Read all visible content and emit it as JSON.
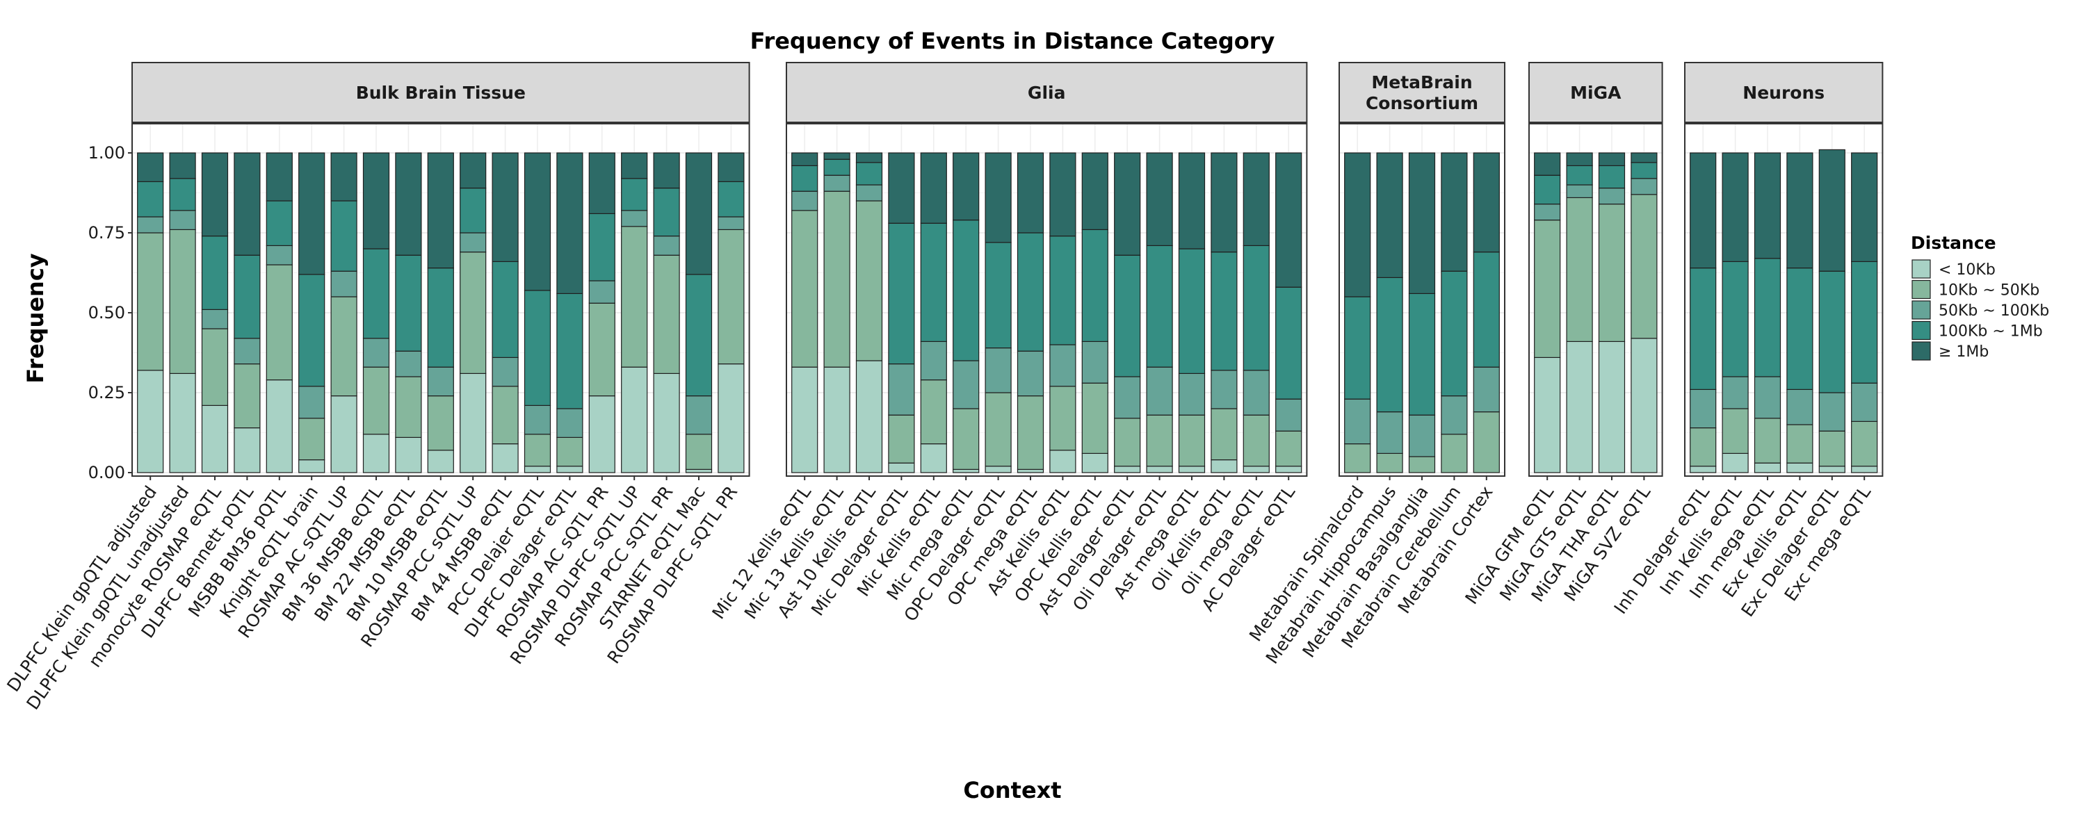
{
  "chart_data": {
    "type": "bar",
    "stacked": true,
    "title": "Frequency of Events in Distance Category",
    "xlabel": "Context",
    "ylabel": "Frequency",
    "ylim": [
      0,
      1
    ],
    "yticks": [
      "0.00",
      "0.25",
      "0.50",
      "0.75",
      "1.00"
    ],
    "grid": true,
    "legend": {
      "title": "Distance",
      "position": "right",
      "items": [
        {
          "label": "< 10Kb",
          "color": "#a8d2c5"
        },
        {
          "label": "10Kb ~ 50Kb",
          "color": "#86b79d"
        },
        {
          "label": "50Kb ~ 100Kb",
          "color": "#66a498"
        },
        {
          "label": "100Kb ~ 1Mb",
          "color": "#358e83"
        },
        {
          "label": "≥ 1Mb",
          "color": "#2d6b67"
        }
      ]
    },
    "panels": [
      {
        "name": "Bulk Brain Tissue",
        "categories": [
          "DLPFC Klein gpQTL adjusted",
          "DLPFC Klein gpQTL unadjusted",
          "monocyte ROSMAP eQTL",
          "DLPFC Bennett pQTL",
          "MSBB BM36 pQTL",
          "Knight eQTL brain",
          "ROSMAP AC sQTL UP",
          "BM 36 MSBB eQTL",
          "BM 22 MSBB eQTL",
          "BM 10 MSBB eQTL",
          "ROSMAP PCC sQTL UP",
          "BM 44 MSBB eQTL",
          "PCC Delajer eQTL",
          "DLPFC Delager eQTL",
          "ROSMAP AC sQTL PR",
          "ROSMAP DLPFC sQTL UP",
          "ROSMAP PCC sQTL PR",
          "STARNET eQTL Mac",
          "ROSMAP DLPFC sQTL PR"
        ],
        "series": [
          {
            "values": [
              0.32,
              0.31,
              0.21,
              0.14,
              0.29,
              0.04,
              0.24,
              0.12,
              0.11,
              0.07,
              0.31,
              0.09,
              0.02,
              0.02,
              0.24,
              0.33,
              0.31,
              0.01,
              0.34
            ]
          },
          {
            "values": [
              0.43,
              0.45,
              0.24,
              0.2,
              0.36,
              0.13,
              0.31,
              0.21,
              0.19,
              0.17,
              0.38,
              0.18,
              0.1,
              0.09,
              0.29,
              0.44,
              0.37,
              0.11,
              0.42
            ]
          },
          {
            "values": [
              0.05,
              0.06,
              0.06,
              0.08,
              0.06,
              0.1,
              0.08,
              0.09,
              0.08,
              0.09,
              0.06,
              0.09,
              0.09,
              0.09,
              0.07,
              0.05,
              0.06,
              0.12,
              0.04
            ]
          },
          {
            "values": [
              0.11,
              0.1,
              0.23,
              0.26,
              0.14,
              0.35,
              0.22,
              0.28,
              0.3,
              0.31,
              0.14,
              0.3,
              0.36,
              0.36,
              0.21,
              0.1,
              0.15,
              0.38,
              0.11
            ]
          },
          {
            "values": [
              0.09,
              0.08,
              0.26,
              0.32,
              0.15,
              0.38,
              0.15,
              0.3,
              0.32,
              0.36,
              0.11,
              0.34,
              0.43,
              0.44,
              0.19,
              0.08,
              0.11,
              0.38,
              0.09
            ]
          }
        ]
      },
      {
        "name": "Glia",
        "categories": [
          "Mic 12 Kellis eQTL",
          "Mic 13 Kellis eQTL",
          "Ast 10 Kellis eQTL",
          "Mic Delager eQTL",
          "Mic Kellis eQTL",
          "Mic mega eQTL",
          "OPC Delager eQTL",
          "OPC mega eQTL",
          "Ast Kellis eQTL",
          "OPC Kellis eQTL",
          "Ast Delager eQTL",
          "Oli Delager eQTL",
          "Ast mega eQTL",
          "Oli Kellis eQTL",
          "Oli mega eQTL",
          "AC Delager eQTL"
        ],
        "series": [
          {
            "values": [
              0.33,
              0.33,
              0.35,
              0.03,
              0.09,
              0.01,
              0.02,
              0.01,
              0.07,
              0.06,
              0.02,
              0.02,
              0.02,
              0.04,
              0.02,
              0.02
            ]
          },
          {
            "values": [
              0.49,
              0.55,
              0.5,
              0.15,
              0.2,
              0.19,
              0.23,
              0.23,
              0.2,
              0.22,
              0.15,
              0.16,
              0.16,
              0.16,
              0.16,
              0.11
            ]
          },
          {
            "values": [
              0.06,
              0.05,
              0.05,
              0.16,
              0.12,
              0.15,
              0.14,
              0.14,
              0.13,
              0.13,
              0.13,
              0.15,
              0.13,
              0.12,
              0.14,
              0.1
            ]
          },
          {
            "values": [
              0.08,
              0.05,
              0.07,
              0.44,
              0.37,
              0.44,
              0.33,
              0.37,
              0.34,
              0.35,
              0.38,
              0.38,
              0.39,
              0.37,
              0.39,
              0.35
            ]
          },
          {
            "values": [
              0.04,
              0.02,
              0.03,
              0.22,
              0.22,
              0.21,
              0.28,
              0.25,
              0.26,
              0.24,
              0.32,
              0.29,
              0.3,
              0.31,
              0.29,
              0.42
            ]
          }
        ]
      },
      {
        "name": "MetaBrain Consortium",
        "name_lines": [
          "MetaBrain",
          "Consortium"
        ],
        "categories": [
          "Metabrain Spinalcord",
          "Metabrain Hippocampus",
          "Metabrain Basalganglia",
          "Metabrain Cerebellum",
          "Metabrain Cortex"
        ],
        "series": [
          {
            "values": [
              0.0,
              0.0,
              0.0,
              0.0,
              0.0
            ]
          },
          {
            "values": [
              0.09,
              0.06,
              0.05,
              0.12,
              0.19
            ]
          },
          {
            "values": [
              0.14,
              0.13,
              0.13,
              0.12,
              0.14
            ]
          },
          {
            "values": [
              0.32,
              0.42,
              0.38,
              0.39,
              0.36
            ]
          },
          {
            "values": [
              0.45,
              0.39,
              0.44,
              0.37,
              0.31
            ]
          }
        ]
      },
      {
        "name": "MiGA",
        "categories": [
          "MiGA GFM eQTL",
          "MiGA GTS eQTL",
          "MiGA THA eQTL",
          "MiGA SVZ eQTL"
        ],
        "series": [
          {
            "values": [
              0.36,
              0.41,
              0.41,
              0.42
            ]
          },
          {
            "values": [
              0.43,
              0.45,
              0.43,
              0.45
            ]
          },
          {
            "values": [
              0.05,
              0.04,
              0.05,
              0.05
            ]
          },
          {
            "values": [
              0.09,
              0.06,
              0.07,
              0.05
            ]
          },
          {
            "values": [
              0.07,
              0.04,
              0.04,
              0.03
            ]
          }
        ]
      },
      {
        "name": "Neurons",
        "categories": [
          "Inh Delager eQTL",
          "Inh Kellis eQTL",
          "Inh mega eQTL",
          "Exc Kellis eQTL",
          "Exc Delager eQTL",
          "Exc mega eQTL"
        ],
        "series": [
          {
            "values": [
              0.02,
              0.06,
              0.03,
              0.03,
              0.02,
              0.02
            ]
          },
          {
            "values": [
              0.12,
              0.14,
              0.14,
              0.12,
              0.11,
              0.14
            ]
          },
          {
            "values": [
              0.12,
              0.1,
              0.13,
              0.11,
              0.12,
              0.12
            ]
          },
          {
            "values": [
              0.38,
              0.36,
              0.37,
              0.38,
              0.38,
              0.38
            ]
          },
          {
            "values": [
              0.36,
              0.34,
              0.33,
              0.36,
              0.38,
              0.34
            ]
          }
        ]
      }
    ]
  }
}
